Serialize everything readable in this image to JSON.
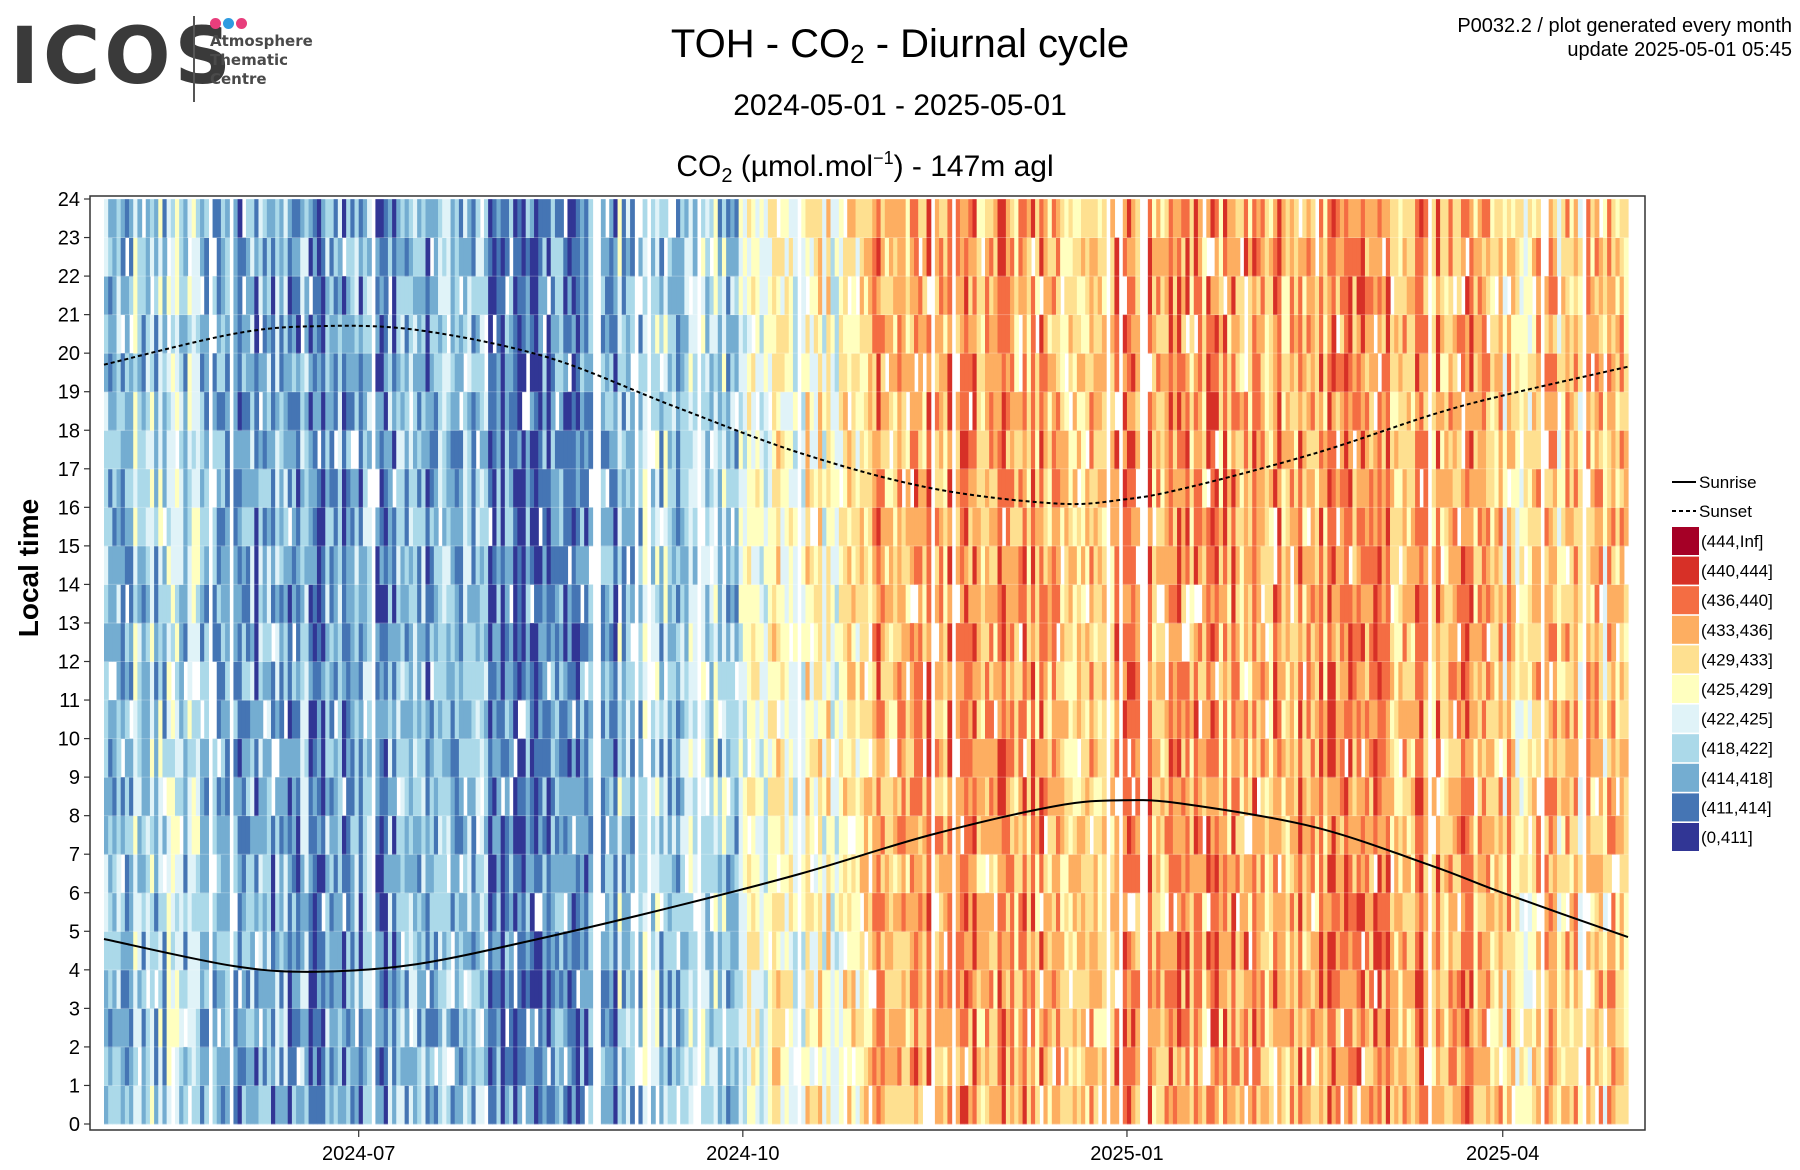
{
  "logo": {
    "wordmark": "ICOS",
    "subtitle_lines": [
      "Atmosphere",
      "Thematic",
      "Centre"
    ],
    "dot_colors": [
      "#e83e7c",
      "#2f9be0",
      "#e83e7c"
    ]
  },
  "header": {
    "title_main": "TOH - CO",
    "title_sub": "2",
    "title_tail": " - Diurnal cycle",
    "period": "2024-05-01 - 2025-05-01",
    "unit_head": "CO",
    "unit_sub": "2",
    "unit_mid": " (µmol.mol",
    "unit_sup": "−1",
    "unit_tail": ") - 147m agl"
  },
  "meta": {
    "line1": "P0032.2 / plot generated every month",
    "line2": "update  2025-05-01 05:45"
  },
  "chart_data": {
    "type": "heatmap",
    "title": "TOH - CO2 - Diurnal cycle",
    "subtitle": "2024-05-01 - 2025-05-01",
    "value_label": "CO2 (µmol.mol−1) - 147m agl",
    "ylabel": "Local time",
    "xlabel": "",
    "x_start": "2024-05-01",
    "x_end": "2025-05-01",
    "x_ticks": [
      "2024-07",
      "2024-10",
      "2025-01",
      "2025-04"
    ],
    "x_tick_dates": [
      "2024-07-01",
      "2024-10-01",
      "2025-01-01",
      "2025-04-01"
    ],
    "ylim": [
      0,
      24
    ],
    "y_ticks": [
      0,
      1,
      2,
      3,
      4,
      5,
      6,
      7,
      8,
      9,
      10,
      11,
      12,
      13,
      14,
      15,
      16,
      17,
      18,
      19,
      20,
      21,
      22,
      23,
      24
    ],
    "grid": true,
    "color_classes": [
      {
        "label": "(444,Inf]",
        "color": "#a50026"
      },
      {
        "label": "(440,444]",
        "color": "#d73027"
      },
      {
        "label": "(436,440]",
        "color": "#f46d43"
      },
      {
        "label": "(433,436]",
        "color": "#fdae61"
      },
      {
        "label": "(429,433]",
        "color": "#fee090"
      },
      {
        "label": "(425,429]",
        "color": "#ffffbf"
      },
      {
        "label": "(422,425]",
        "color": "#e0f3f8"
      },
      {
        "label": "(418,422]",
        "color": "#abd9e9"
      },
      {
        "label": "(414,418]",
        "color": "#74add1"
      },
      {
        "label": "(411,414]",
        "color": "#4575b4"
      },
      {
        "label": "(0,411]",
        "color": "#313695"
      }
    ],
    "monthly_class_index": [
      {
        "month": "2024-05",
        "class_index": 7
      },
      {
        "month": "2024-06",
        "class_index": 8
      },
      {
        "month": "2024-07",
        "class_index": 8
      },
      {
        "month": "2024-08",
        "class_index": 9
      },
      {
        "month": "2024-09",
        "class_index": 7
      },
      {
        "month": "2024-10",
        "class_index": 5
      },
      {
        "month": "2024-11",
        "class_index": 3
      },
      {
        "month": "2024-12",
        "class_index": 3
      },
      {
        "month": "2025-01",
        "class_index": 3
      },
      {
        "month": "2025-02",
        "class_index": 3
      },
      {
        "month": "2025-03",
        "class_index": 3
      },
      {
        "month": "2025-04",
        "class_index": 4
      }
    ],
    "series": [
      {
        "name": "Sunrise",
        "style": "solid",
        "x": [
          "2024-05-01",
          "2024-06-01",
          "2024-06-21",
          "2024-07-15",
          "2024-08-15",
          "2024-09-15",
          "2024-10-15",
          "2024-11-15",
          "2024-12-15",
          "2024-12-31",
          "2025-01-15",
          "2025-02-15",
          "2025-03-15",
          "2025-04-01",
          "2025-05-01"
        ],
        "y": [
          4.8,
          4.1,
          3.95,
          4.15,
          4.85,
          5.65,
          6.5,
          7.5,
          8.25,
          8.4,
          8.3,
          7.7,
          6.7,
          6.0,
          4.85
        ]
      },
      {
        "name": "Sunset",
        "style": "dotted",
        "x": [
          "2024-05-01",
          "2024-06-01",
          "2024-06-21",
          "2024-07-15",
          "2024-08-15",
          "2024-09-15",
          "2024-10-15",
          "2024-11-15",
          "2024-12-15",
          "2024-12-31",
          "2025-01-15",
          "2025-02-15",
          "2025-03-15",
          "2025-04-01",
          "2025-05-01"
        ],
        "y": [
          19.7,
          20.5,
          20.7,
          20.6,
          19.9,
          18.6,
          17.4,
          16.5,
          16.1,
          16.2,
          16.5,
          17.4,
          18.4,
          18.9,
          19.65
        ]
      }
    ]
  }
}
